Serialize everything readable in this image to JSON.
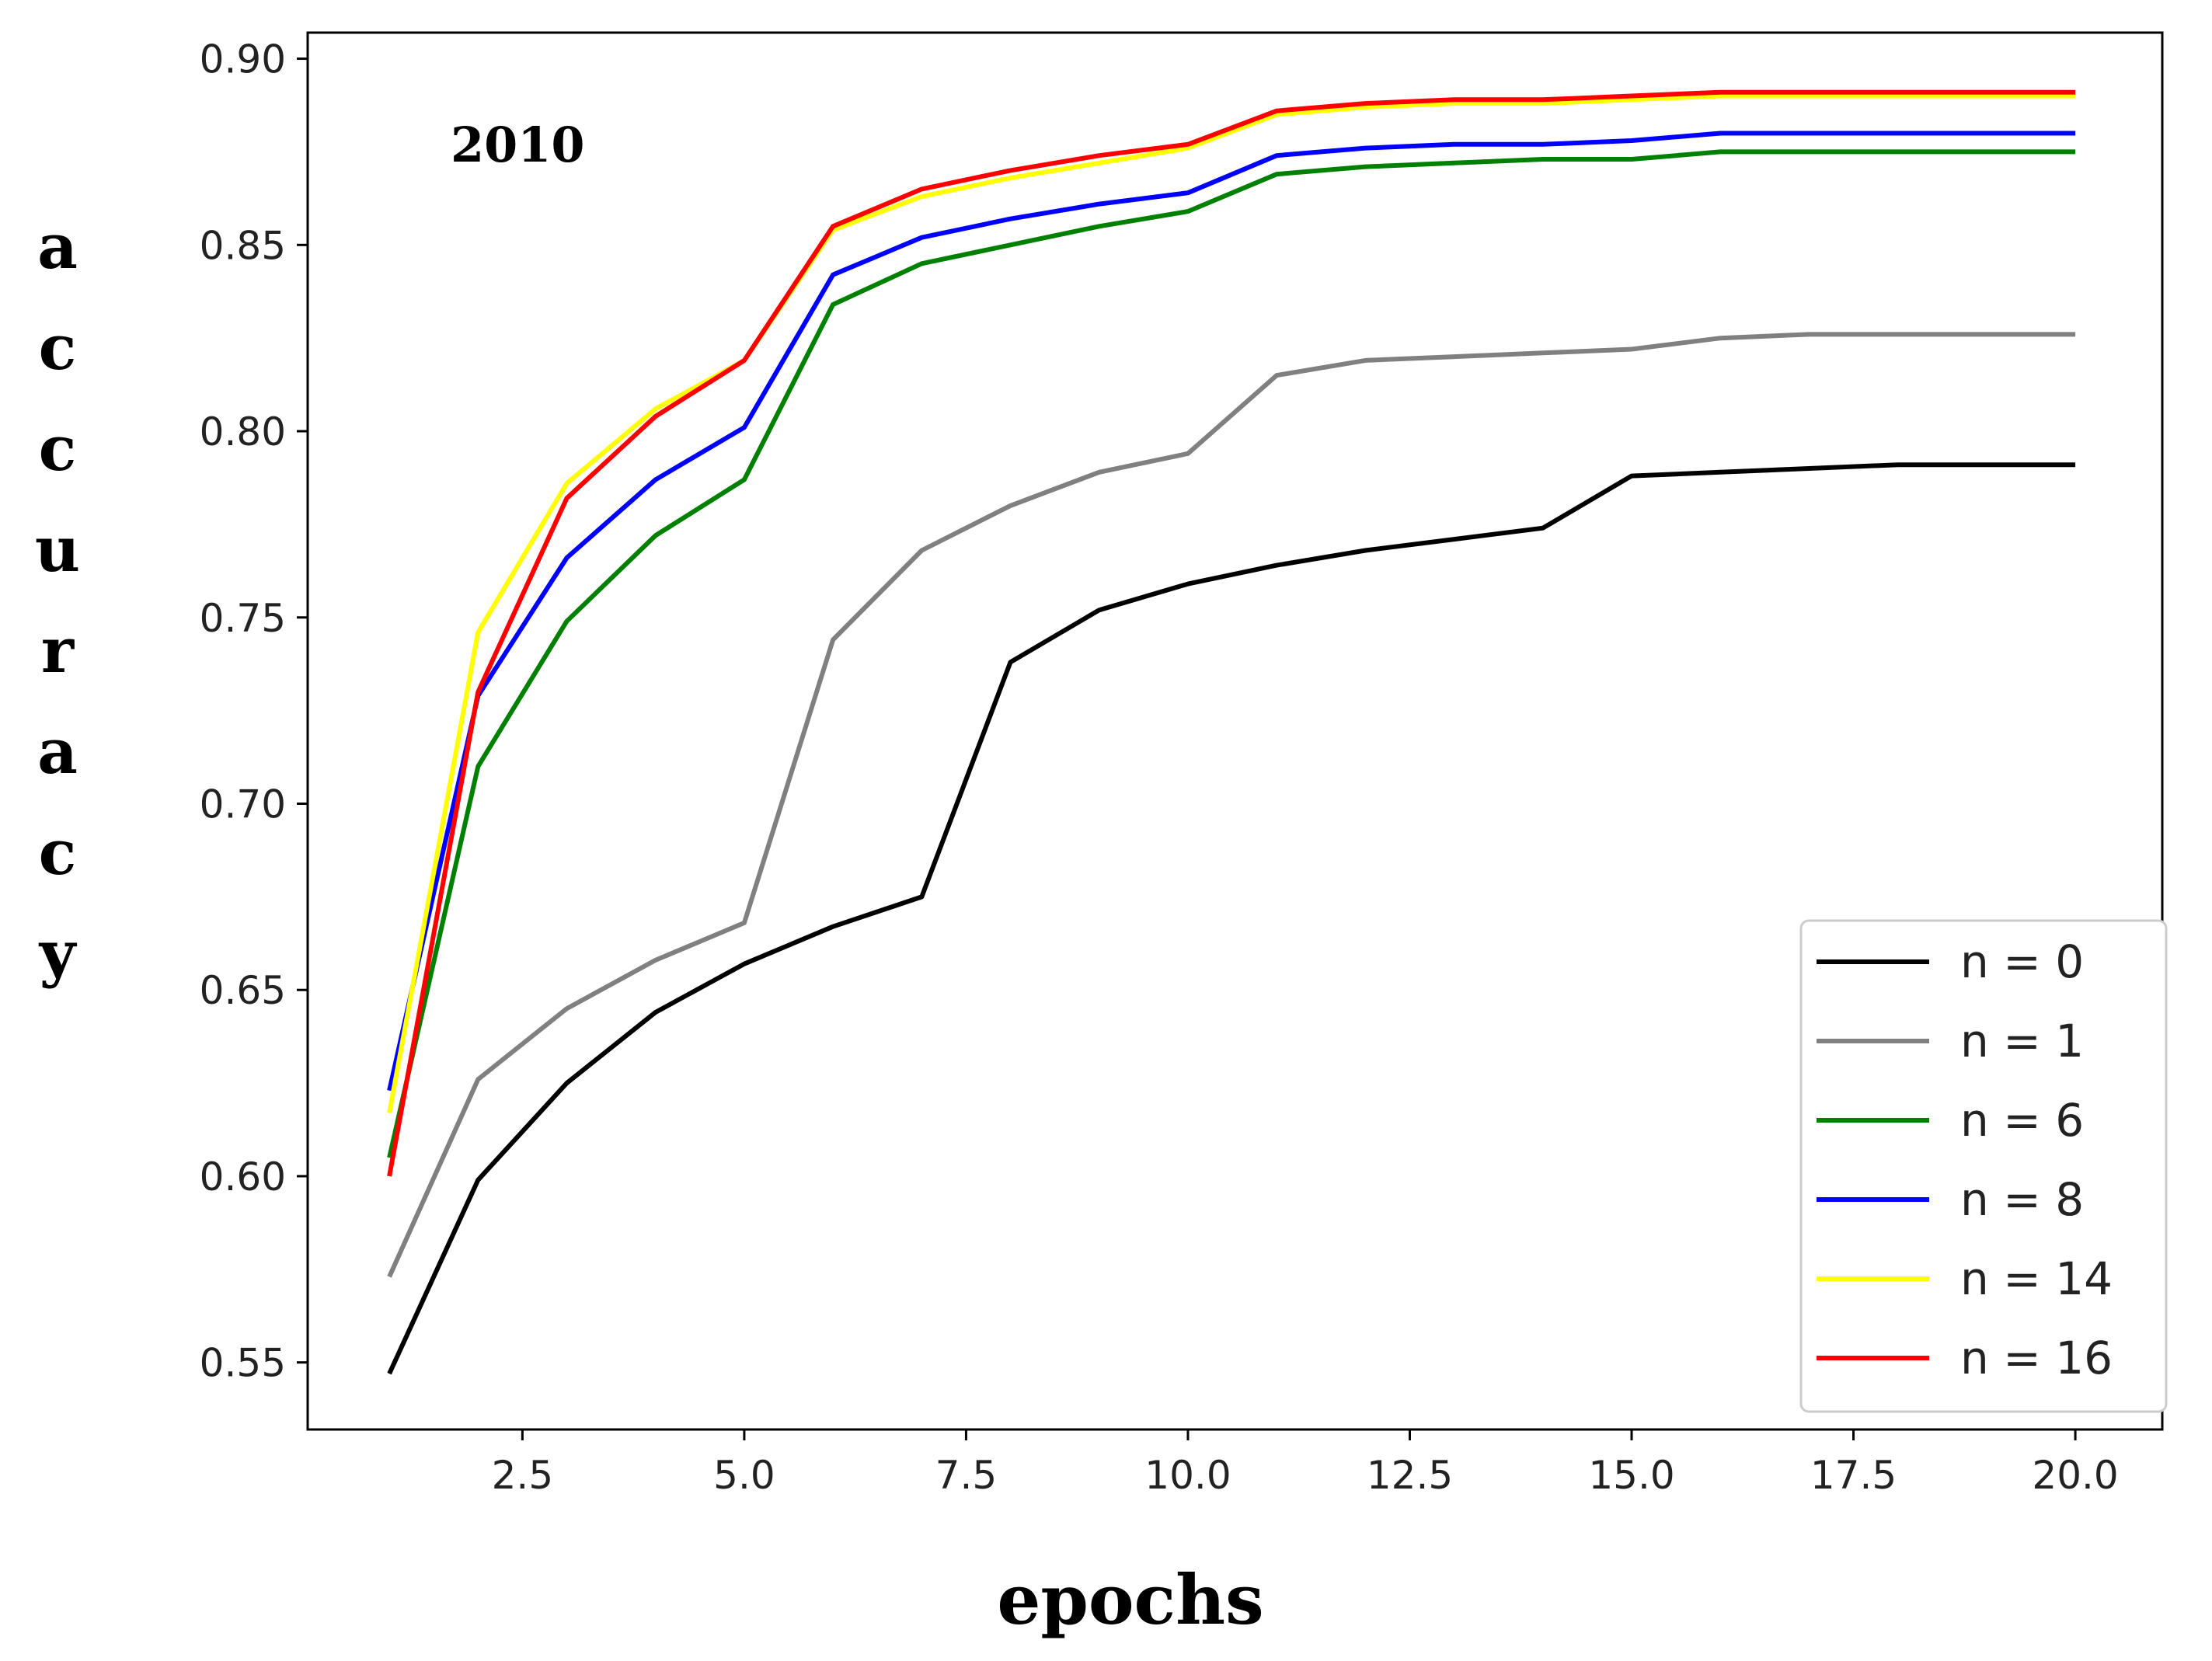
{
  "chart_data": {
    "type": "line",
    "title": "",
    "annotation": "2010",
    "xlabel": "epochs",
    "ylabel": "accuracy",
    "xlim": [
      0.08,
      20.98
    ],
    "ylim": [
      0.532,
      0.907
    ],
    "grid": false,
    "legend_position": "bottom-right",
    "x_ticks": [
      2.5,
      5.0,
      7.5,
      10.0,
      12.5,
      15.0,
      17.5,
      20.0
    ],
    "x_tick_labels": [
      "2.5",
      "5.0",
      "7.5",
      "10.0",
      "12.5",
      "15.0",
      "17.5",
      "20.0"
    ],
    "y_ticks": [
      0.55,
      0.6,
      0.65,
      0.7,
      0.75,
      0.8,
      0.85,
      0.9
    ],
    "y_tick_labels": [
      "0.55",
      "0.60",
      "0.65",
      "0.70",
      "0.75",
      "0.80",
      "0.85",
      "0.90"
    ],
    "x": [
      1,
      2,
      3,
      4,
      5,
      6,
      7,
      8,
      9,
      10,
      11,
      12,
      13,
      14,
      15,
      16,
      17,
      18,
      19,
      20
    ],
    "series": [
      {
        "name": "n = 0",
        "color": "#000000",
        "values": [
          0.547,
          0.599,
          0.625,
          0.644,
          0.657,
          0.667,
          0.675,
          0.738,
          0.752,
          0.759,
          0.764,
          0.768,
          0.771,
          0.774,
          0.788,
          0.789,
          0.79,
          0.791,
          0.791,
          0.791
        ]
      },
      {
        "name": "n = 1",
        "color": "#808080",
        "values": [
          0.573,
          0.626,
          0.645,
          0.658,
          0.668,
          0.744,
          0.768,
          0.78,
          0.789,
          0.794,
          0.815,
          0.819,
          0.82,
          0.821,
          0.822,
          0.825,
          0.826,
          0.826,
          0.826,
          0.826
        ]
      },
      {
        "name": "n = 6",
        "color": "#008000",
        "values": [
          0.605,
          0.71,
          0.749,
          0.772,
          0.787,
          0.834,
          0.845,
          0.85,
          0.855,
          0.859,
          0.869,
          0.871,
          0.872,
          0.873,
          0.873,
          0.875,
          0.875,
          0.875,
          0.875,
          0.875
        ]
      },
      {
        "name": "n = 8",
        "color": "#0000ff",
        "values": [
          0.623,
          0.729,
          0.766,
          0.787,
          0.801,
          0.842,
          0.852,
          0.857,
          0.861,
          0.864,
          0.874,
          0.876,
          0.877,
          0.877,
          0.878,
          0.88,
          0.88,
          0.88,
          0.88,
          0.88
        ]
      },
      {
        "name": "n = 14",
        "color": "#ffff00",
        "values": [
          0.617,
          0.746,
          0.786,
          0.806,
          0.819,
          0.854,
          0.863,
          0.868,
          0.872,
          0.876,
          0.885,
          0.887,
          0.888,
          0.888,
          0.889,
          0.89,
          0.89,
          0.89,
          0.89,
          0.89
        ]
      },
      {
        "name": "n = 16",
        "color": "#ff0000",
        "values": [
          0.6,
          0.73,
          0.782,
          0.804,
          0.819,
          0.855,
          0.865,
          0.87,
          0.874,
          0.877,
          0.886,
          0.888,
          0.889,
          0.889,
          0.89,
          0.891,
          0.891,
          0.891,
          0.891,
          0.891
        ]
      }
    ]
  }
}
